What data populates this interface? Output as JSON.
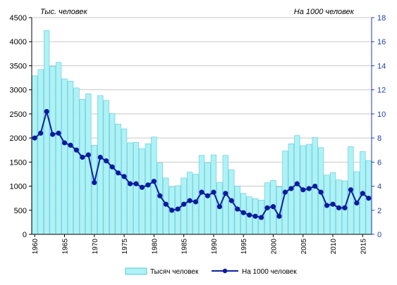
{
  "chart_data": {
    "type": "bar+line",
    "left_unit_label": "Тыс. человек",
    "right_unit_label": "На 1000 человек",
    "left_axis": {
      "min": 0,
      "max": 4500,
      "step": 500,
      "ticks": [
        "0",
        "500",
        "1000",
        "1500",
        "2000",
        "2500",
        "3000",
        "3500",
        "4000",
        "4500"
      ]
    },
    "right_axis": {
      "min": 0,
      "max": 18,
      "step": 2,
      "ticks": [
        "0",
        "2",
        "4",
        "6",
        "8",
        "10",
        "12",
        "14",
        "16",
        "18"
      ]
    },
    "x_tick_labels": [
      "1960",
      "1965",
      "1970",
      "1975",
      "1980",
      "1985",
      "1990",
      "1995",
      "2000",
      "2005",
      "2010",
      "2015"
    ],
    "years": [
      1960,
      1961,
      1962,
      1963,
      1964,
      1965,
      1966,
      1967,
      1968,
      1969,
      1970,
      1971,
      1972,
      1973,
      1974,
      1975,
      1976,
      1977,
      1978,
      1979,
      1980,
      1981,
      1982,
      1983,
      1984,
      1985,
      1986,
      1987,
      1988,
      1989,
      1990,
      1991,
      1992,
      1993,
      1994,
      1995,
      1996,
      1997,
      1998,
      1999,
      2000,
      2001,
      2002,
      2003,
      2004,
      2005,
      2006,
      2007,
      2008,
      2009,
      2010,
      2011,
      2012,
      2013,
      2014,
      2015,
      2016
    ],
    "series": [
      {
        "name": "Тысяч человек",
        "kind": "bar",
        "axis": "left",
        "color": "#aef2f6",
        "border_color": "#5cc7d8",
        "values": [
          3290,
          3420,
          4230,
          3490,
          3570,
          3230,
          3180,
          3040,
          2800,
          2920,
          1850,
          2880,
          2780,
          2510,
          2290,
          2190,
          1900,
          1910,
          1780,
          1880,
          2020,
          1480,
          1170,
          980,
          1010,
          1170,
          1290,
          1250,
          1640,
          1480,
          1650,
          1080,
          1640,
          1340,
          1000,
          850,
          780,
          740,
          710,
          1070,
          1120,
          990,
          1730,
          1880,
          2050,
          1840,
          1870,
          2010,
          1800,
          1230,
          1280,
          1130,
          1110,
          1820,
          1300,
          1720,
          1530
        ]
      },
      {
        "name": "На 1000 человек",
        "kind": "line",
        "axis": "right",
        "color": "#1020a0",
        "marker_color": "#0a1a9e",
        "values": [
          8.0,
          8.4,
          10.2,
          8.3,
          8.4,
          7.6,
          7.4,
          7.0,
          6.4,
          6.6,
          4.3,
          6.4,
          6.1,
          5.6,
          5.1,
          4.8,
          4.2,
          4.2,
          3.9,
          4.1,
          4.4,
          3.2,
          2.5,
          2.0,
          2.1,
          2.5,
          2.8,
          2.7,
          3.5,
          3.2,
          3.5,
          2.3,
          3.4,
          2.8,
          2.1,
          1.8,
          1.6,
          1.5,
          1.4,
          2.2,
          2.3,
          1.5,
          3.5,
          3.8,
          4.2,
          3.7,
          3.8,
          4.0,
          3.5,
          2.4,
          2.5,
          2.2,
          2.2,
          3.7,
          2.6,
          3.4,
          3.0
        ]
      }
    ],
    "grid": true,
    "legend_position": "bottom"
  },
  "colors": {
    "right_axis": "#1f3fa8",
    "grid": "#c8c8c8"
  }
}
